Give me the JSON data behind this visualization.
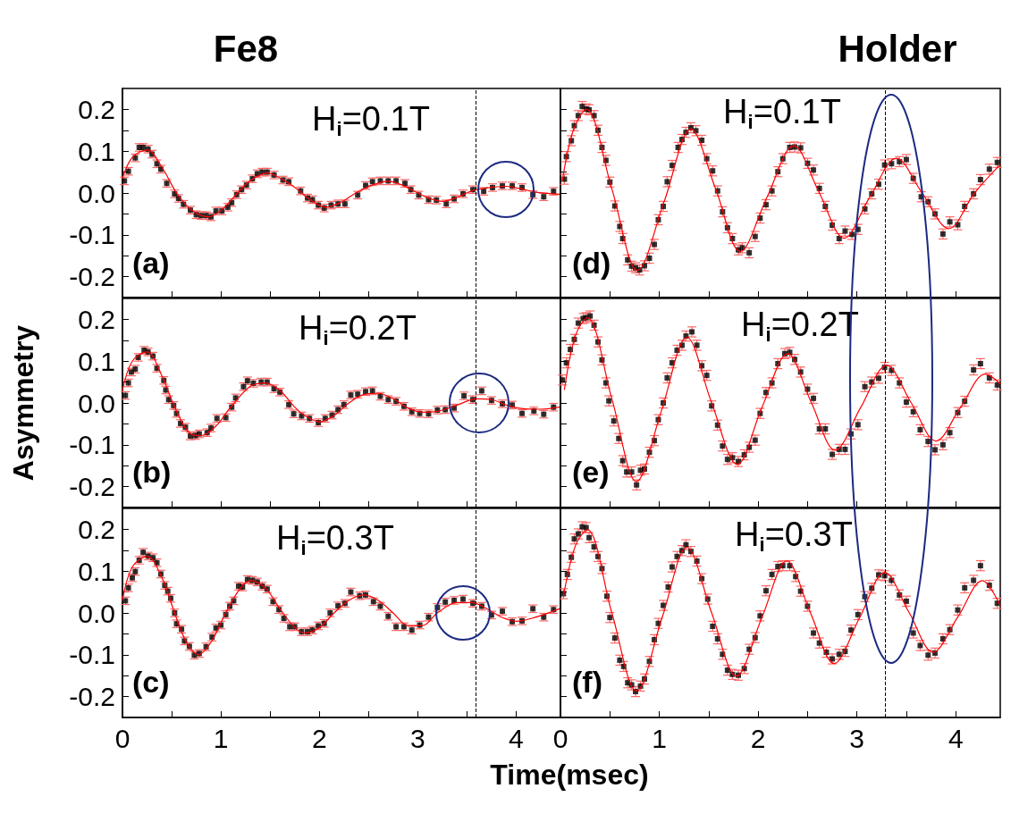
{
  "chart_data": [
    {
      "type": "scatter",
      "title": "Fe8",
      "annotations": [
        "H$_{i}$=0.1T",
        "(a)"
      ],
      "marker": "square",
      "tick_labels": "y",
      "line_style": "solid",
      "xlim": [
        0,
        4.45
      ],
      "xticks": [
        0,
        {
          "value": 0.5,
          "label": null
        },
        1,
        {
          "value": 1.5,
          "label": null
        },
        2,
        {
          "value": 2.5,
          "label": null
        },
        3,
        {
          "value": 3.5,
          "label": null
        },
        4
      ],
      "ylim": [
        -0.25,
        0.25
      ],
      "yticks": [
        -0.2,
        {
          "value": -0.15,
          "label": null
        },
        -0.1,
        {
          "value": -0.05,
          "label": null
        },
        {
          "value": 0,
          "label": "0.0"
        },
        {
          "value": 0.05,
          "label": null
        },
        0.1,
        {
          "value": 0.15,
          "label": null
        },
        0.2
      ],
      "ref_lines": [
        {
          "axis": "x",
          "value": 3.59,
          "color": "#000000",
          "line_style": "dashed"
        }
      ],
      "series": [
        {
          "color": "#000000",
          "x": [
            0.02,
            0.06,
            0.13,
            0.17,
            0.21,
            0.26,
            0.3,
            0.35,
            0.39,
            0.45,
            0.53,
            0.57,
            0.62,
            0.69,
            0.75,
            0.8,
            0.85,
            0.9,
            0.95,
            1.01,
            1.07,
            1.11,
            1.16,
            1.21,
            1.26,
            1.32,
            1.37,
            1.42,
            1.47,
            1.54,
            1.63,
            1.69,
            1.81,
            1.88,
            1.93,
            1.99,
            2.05,
            2.12,
            2.19,
            2.26,
            2.39,
            2.47,
            2.54,
            2.62,
            2.7,
            2.78,
            2.87,
            2.93,
            3.01,
            3.11,
            3.19,
            3.29,
            3.37,
            3.46,
            3.56,
            3.67,
            3.76,
            3.86,
            3.96,
            4.06,
            4.17,
            4.28,
            4.38
          ],
          "values": [
            0.029,
            0.052,
            0.084,
            0.109,
            0.109,
            0.105,
            0.093,
            0.07,
            0.057,
            0.023,
            -0.002,
            -0.013,
            -0.027,
            -0.041,
            -0.052,
            -0.054,
            -0.054,
            -0.057,
            -0.043,
            -0.043,
            -0.034,
            -0.023,
            -0.004,
            0.008,
            0.019,
            0.034,
            0.046,
            0.05,
            0.05,
            0.043,
            0.031,
            0.027,
            0.005,
            -0.012,
            -0.016,
            -0.029,
            -0.036,
            -0.029,
            -0.026,
            -0.026,
            -0.005,
            0.018,
            0.027,
            0.029,
            0.029,
            0.029,
            0.023,
            0.008,
            -0.005,
            -0.016,
            -0.017,
            -0.026,
            -0.014,
            -0.002,
            0.008,
            0.004,
            0.013,
            0.017,
            0.017,
            0.013,
            -0.004,
            -0.009,
            0.004
          ],
          "errors": [
            0.009,
            0.009,
            0.009,
            0.009,
            0.009,
            0.009,
            0.009,
            0.009,
            0.009,
            0.009,
            0.009,
            0.009,
            0.009,
            0.009,
            0.009,
            0.009,
            0.009,
            0.009,
            0.009,
            0.009,
            0.009,
            0.009,
            0.009,
            0.009,
            0.009,
            0.009,
            0.009,
            0.009,
            0.009,
            0.009,
            0.009,
            0.009,
            0.009,
            0.009,
            0.009,
            0.009,
            0.009,
            0.009,
            0.009,
            0.009,
            0.009,
            0.009,
            0.009,
            0.009,
            0.009,
            0.009,
            0.009,
            0.009,
            0.009,
            0.009,
            0.009,
            0.009,
            0.009,
            0.009,
            0.009,
            0.009,
            0.009,
            0.009,
            0.009,
            0.009,
            0.009,
            0.009,
            0.009
          ]
        },
        {
          "type": "line",
          "color": "#ff0000",
          "marker": "none",
          "x": [
            0,
            0.1,
            0.25,
            0.4,
            0.55,
            0.7,
            0.87,
            1.0,
            1.17,
            1.3,
            1.47,
            1.62,
            1.77,
            1.9,
            2.07,
            2.22,
            2.37,
            2.53,
            2.7,
            2.85,
            3.0,
            3.12,
            3.25,
            3.4,
            3.55,
            3.7,
            3.9,
            4.05,
            4.2,
            4.44
          ],
          "values": [
            0.035,
            0.085,
            0.103,
            0.062,
            0.0,
            -0.04,
            -0.057,
            -0.042,
            0.0,
            0.03,
            0.048,
            0.033,
            0.01,
            -0.015,
            -0.034,
            -0.022,
            0.0,
            0.018,
            0.028,
            0.018,
            0.0,
            -0.013,
            -0.02,
            -0.01,
            0.005,
            0.012,
            0.016,
            0.01,
            0.002,
            -0.003
          ]
        }
      ]
    },
    {
      "type": "scatter",
      "ylabel": "Asymmetry",
      "annotations": [
        "H$_{i}$=0.2T",
        "(b)"
      ],
      "marker": "square",
      "tick_labels": "y",
      "line_style": "solid",
      "xlim": [
        0,
        4.45
      ],
      "xticks": [
        0,
        {
          "value": 0.5,
          "label": null
        },
        1,
        {
          "value": 1.5,
          "label": null
        },
        2,
        {
          "value": 2.5,
          "label": null
        },
        3,
        {
          "value": 3.5,
          "label": null
        },
        4
      ],
      "ylim": [
        -0.25,
        0.25
      ],
      "yticks": [
        -0.2,
        {
          "value": -0.15,
          "label": null
        },
        -0.1,
        {
          "value": -0.05,
          "label": null
        },
        {
          "value": 0,
          "label": "0.0"
        },
        {
          "value": 0.05,
          "label": null
        },
        0.1,
        {
          "value": 0.15,
          "label": null
        },
        0.2
      ],
      "ref_lines": [
        {
          "axis": "x",
          "value": 3.59,
          "color": "#000000",
          "line_style": "dashed"
        }
      ],
      "series": [
        {
          "color": "#000000",
          "x": [
            0.03,
            0.06,
            0.09,
            0.13,
            0.16,
            0.22,
            0.26,
            0.31,
            0.35,
            0.42,
            0.44,
            0.47,
            0.52,
            0.55,
            0.59,
            0.64,
            0.69,
            0.74,
            0.78,
            0.86,
            0.9,
            0.96,
            1.05,
            1.11,
            1.15,
            1.23,
            1.27,
            1.33,
            1.41,
            1.47,
            1.54,
            1.6,
            1.69,
            1.74,
            1.82,
            1.9,
            1.99,
            2.06,
            2.13,
            2.19,
            2.25,
            2.32,
            2.39,
            2.47,
            2.54,
            2.62,
            2.7,
            2.78,
            2.86,
            2.94,
            3.02,
            3.11,
            3.2,
            3.28,
            3.37,
            3.47,
            3.56,
            3.65,
            3.75,
            3.86,
            3.96,
            4.06,
            4.18,
            4.28,
            4.38
          ],
          "values": [
            0.018,
            0.048,
            0.074,
            0.081,
            0.109,
            0.126,
            0.122,
            0.112,
            0.083,
            0.054,
            0.031,
            0.008,
            -0.006,
            -0.025,
            -0.049,
            -0.058,
            -0.079,
            -0.078,
            -0.074,
            -0.071,
            -0.06,
            -0.037,
            -0.035,
            -0.01,
            0.012,
            0.039,
            0.053,
            0.047,
            0.05,
            0.05,
            0.034,
            0.026,
            -0.004,
            -0.026,
            -0.031,
            -0.037,
            -0.047,
            -0.037,
            -0.029,
            -0.016,
            -0.004,
            0.019,
            0.021,
            0.027,
            0.029,
            0.016,
            0.008,
            0.004,
            -0.008,
            -0.021,
            -0.025,
            -0.026,
            -0.017,
            -0.016,
            -0.012,
            0.017,
            0.008,
            0.029,
            0.006,
            -0.002,
            -0.005,
            -0.025,
            -0.019,
            -0.027,
            -0.01
          ],
          "errors": [
            0.009,
            0.009,
            0.009,
            0.009,
            0.009,
            0.009,
            0.009,
            0.009,
            0.009,
            0.009,
            0.009,
            0.009,
            0.009,
            0.009,
            0.009,
            0.009,
            0.009,
            0.009,
            0.009,
            0.009,
            0.009,
            0.009,
            0.009,
            0.009,
            0.009,
            0.009,
            0.009,
            0.009,
            0.009,
            0.009,
            0.009,
            0.009,
            0.009,
            0.009,
            0.009,
            0.009,
            0.009,
            0.009,
            0.009,
            0.009,
            0.009,
            0.009,
            0.009,
            0.009,
            0.009,
            0.009,
            0.009,
            0.009,
            0.009,
            0.009,
            0.009,
            0.009,
            0.009,
            0.009,
            0.009,
            0.009,
            0.009,
            0.009,
            0.009,
            0.009,
            0.009,
            0.009,
            0.009,
            0.009,
            0.009
          ]
        },
        {
          "type": "line",
          "color": "#ff0000",
          "marker": "none",
          "x": [
            0,
            0.1,
            0.25,
            0.4,
            0.55,
            0.7,
            0.8,
            0.95,
            1.1,
            1.3,
            1.45,
            1.6,
            1.75,
            1.85,
            2.0,
            2.15,
            2.3,
            2.45,
            2.6,
            2.75,
            2.9,
            3.05,
            3.2,
            3.4,
            3.6,
            3.75,
            3.9,
            4.05,
            4.25,
            4.44
          ],
          "values": [
            0.03,
            0.1,
            0.122,
            0.065,
            -0.02,
            -0.075,
            -0.078,
            -0.055,
            -0.01,
            0.04,
            0.048,
            0.03,
            -0.01,
            -0.03,
            -0.045,
            -0.03,
            0.0,
            0.02,
            0.023,
            0.01,
            -0.012,
            -0.022,
            -0.02,
            -0.005,
            0.01,
            0.008,
            -0.005,
            -0.013,
            -0.015,
            -0.01
          ]
        }
      ]
    },
    {
      "type": "scatter",
      "xlabel": "Time(msec)",
      "annotations": [
        "H$_{i}$=0.3T",
        "(c)"
      ],
      "marker": "square",
      "line_style": "solid",
      "xlim": [
        0,
        4.45
      ],
      "xticks": [
        0,
        {
          "value": 0.5,
          "label": null
        },
        1,
        {
          "value": 1.5,
          "label": null
        },
        2,
        {
          "value": 2.5,
          "label": null
        },
        3,
        {
          "value": 3.5,
          "label": null
        },
        4
      ],
      "ylim": [
        -0.25,
        0.25
      ],
      "yticks": [
        -0.2,
        {
          "value": -0.15,
          "label": null
        },
        -0.1,
        {
          "value": -0.05,
          "label": null
        },
        {
          "value": 0,
          "label": "0.0"
        },
        {
          "value": 0.05,
          "label": null
        },
        0.1,
        {
          "value": 0.15,
          "label": null
        },
        0.2
      ],
      "ref_lines": [
        {
          "axis": "x",
          "value": 3.59,
          "color": "#000000",
          "line_style": "dashed"
        }
      ],
      "series": [
        {
          "color": "#000000",
          "x": [
            0.03,
            0.06,
            0.1,
            0.13,
            0.17,
            0.21,
            0.26,
            0.31,
            0.35,
            0.39,
            0.43,
            0.46,
            0.49,
            0.53,
            0.55,
            0.6,
            0.63,
            0.68,
            0.73,
            0.78,
            0.85,
            0.91,
            0.95,
            1.0,
            1.05,
            1.09,
            1.13,
            1.18,
            1.22,
            1.27,
            1.32,
            1.37,
            1.42,
            1.47,
            1.53,
            1.59,
            1.64,
            1.7,
            1.75,
            1.82,
            1.88,
            1.93,
            1.99,
            2.05,
            2.11,
            2.19,
            2.26,
            2.32,
            2.41,
            2.47,
            2.55,
            2.62,
            2.7,
            2.78,
            2.86,
            2.94,
            3.02,
            3.11,
            3.2,
            3.28,
            3.37,
            3.46,
            3.56,
            3.65,
            3.75,
            3.86,
            3.96,
            4.06,
            4.17,
            4.28,
            4.38
          ],
          "values": [
            0.029,
            0.06,
            0.084,
            0.099,
            0.126,
            0.145,
            0.136,
            0.132,
            0.12,
            0.093,
            0.066,
            0.052,
            0.035,
            0.0,
            -0.026,
            -0.039,
            -0.067,
            -0.08,
            -0.101,
            -0.097,
            -0.081,
            -0.058,
            -0.036,
            -0.029,
            -0.004,
            0.016,
            0.029,
            0.064,
            0.062,
            0.08,
            0.078,
            0.074,
            0.064,
            0.057,
            0.027,
            0.008,
            -0.013,
            -0.033,
            -0.033,
            -0.045,
            -0.045,
            -0.041,
            -0.031,
            -0.025,
            0.0,
            0.017,
            0.023,
            0.05,
            0.041,
            0.043,
            0.027,
            0.016,
            -0.008,
            -0.033,
            -0.033,
            -0.041,
            -0.029,
            -0.01,
            0.013,
            0.026,
            0.03,
            0.033,
            0.023,
            0.016,
            -0.005,
            0.004,
            -0.021,
            -0.019,
            0.01,
            -0.01,
            0.008
          ],
          "errors": [
            0.009,
            0.009,
            0.009,
            0.009,
            0.009,
            0.009,
            0.009,
            0.009,
            0.009,
            0.009,
            0.009,
            0.009,
            0.009,
            0.009,
            0.009,
            0.009,
            0.009,
            0.009,
            0.009,
            0.009,
            0.009,
            0.009,
            0.009,
            0.009,
            0.009,
            0.009,
            0.009,
            0.009,
            0.009,
            0.009,
            0.009,
            0.009,
            0.009,
            0.009,
            0.009,
            0.009,
            0.009,
            0.009,
            0.009,
            0.009,
            0.009,
            0.009,
            0.009,
            0.009,
            0.009,
            0.009,
            0.009,
            0.009,
            0.009,
            0.009,
            0.009,
            0.009,
            0.009,
            0.009,
            0.009,
            0.009,
            0.009,
            0.009,
            0.009,
            0.009,
            0.009,
            0.009,
            0.009,
            0.009,
            0.009,
            0.009,
            0.009,
            0.009,
            0.009,
            0.009,
            0.009
          ]
        },
        {
          "type": "line",
          "color": "#ff0000",
          "marker": "none",
          "x": [
            0,
            0.1,
            0.25,
            0.4,
            0.53,
            0.65,
            0.77,
            0.9,
            1.05,
            1.2,
            1.3,
            1.45,
            1.6,
            1.75,
            1.85,
            2.0,
            2.15,
            2.3,
            2.45,
            2.6,
            2.75,
            2.9,
            3.05,
            3.2,
            3.4,
            3.55,
            3.7,
            3.85,
            4.0,
            4.2,
            4.44
          ],
          "values": [
            0.03,
            0.11,
            0.135,
            0.085,
            0.0,
            -0.07,
            -0.1,
            -0.07,
            0.0,
            0.06,
            0.077,
            0.06,
            0.01,
            -0.035,
            -0.048,
            -0.035,
            0.0,
            0.03,
            0.043,
            0.03,
            0.0,
            -0.03,
            -0.03,
            0.0,
            0.025,
            0.025,
            0.01,
            -0.01,
            -0.02,
            -0.01,
            0.01
          ]
        }
      ]
    },
    {
      "type": "scatter",
      "title": "Holder",
      "annotations": [
        "H$_{i}$=0.1T",
        "(d)"
      ],
      "marker": "square",
      "tick_labels": false,
      "line_style": "solid",
      "xlim": [
        0,
        4.45
      ],
      "xticks": [
        0,
        0.5,
        1,
        1.5,
        2,
        2.5,
        3,
        3.5,
        4
      ],
      "ylim": [
        -0.25,
        0.25
      ],
      "yticks": [
        -0.2,
        -0.15,
        -0.1,
        -0.05,
        0,
        0.05,
        0.1,
        0.15,
        0.2
      ],
      "ref_lines": [
        {
          "axis": "x",
          "value": 3.29,
          "color": "#000000",
          "line_style": "dashed"
        }
      ],
      "series": [
        {
          "color": "#000000",
          "x": [
            0.04,
            0.06,
            0.11,
            0.14,
            0.18,
            0.22,
            0.26,
            0.29,
            0.34,
            0.38,
            0.42,
            0.46,
            0.5,
            0.55,
            0.6,
            0.63,
            0.68,
            0.72,
            0.76,
            0.8,
            0.85,
            0.9,
            0.95,
            0.99,
            1.04,
            1.08,
            1.13,
            1.19,
            1.23,
            1.27,
            1.32,
            1.37,
            1.43,
            1.48,
            1.54,
            1.59,
            1.64,
            1.69,
            1.74,
            1.8,
            1.84,
            1.91,
            1.97,
            2.02,
            2.08,
            2.14,
            2.2,
            2.25,
            2.32,
            2.37,
            2.43,
            2.5,
            2.56,
            2.62,
            2.68,
            2.75,
            2.82,
            2.88,
            2.95,
            3.01,
            3.08,
            3.15,
            3.22,
            3.28,
            3.35,
            3.43,
            3.5,
            3.57,
            3.65,
            3.72,
            3.79,
            3.87,
            3.94,
            4.02,
            4.09,
            4.18,
            4.25,
            4.34,
            4.42
          ],
          "values": [
            0.033,
            0.087,
            0.125,
            0.161,
            0.185,
            0.207,
            0.201,
            0.199,
            0.185,
            0.15,
            0.109,
            0.078,
            0.026,
            -0.031,
            -0.08,
            -0.109,
            -0.16,
            -0.175,
            -0.179,
            -0.184,
            -0.174,
            -0.156,
            -0.123,
            -0.064,
            -0.032,
            0.027,
            0.066,
            0.109,
            0.128,
            0.145,
            0.156,
            0.149,
            0.126,
            0.082,
            0.053,
            0.005,
            -0.045,
            -0.083,
            -0.109,
            -0.136,
            -0.131,
            -0.143,
            -0.104,
            -0.06,
            -0.028,
            0.005,
            0.051,
            0.082,
            0.109,
            0.11,
            0.108,
            0.071,
            0.055,
            0.011,
            -0.032,
            -0.077,
            -0.109,
            -0.091,
            -0.099,
            -0.087,
            -0.038,
            -0.002,
            0.021,
            0.067,
            0.07,
            0.075,
            0.08,
            0.035,
            -0.009,
            -0.021,
            -0.05,
            -0.098,
            -0.069,
            -0.076,
            -0.032,
            -0.002,
            0.032,
            0.057,
            0.073
          ],
          "errors": [
            0.012,
            0.012,
            0.012,
            0.012,
            0.012,
            0.012,
            0.012,
            0.012,
            0.012,
            0.012,
            0.012,
            0.012,
            0.012,
            0.012,
            0.012,
            0.012,
            0.012,
            0.012,
            0.012,
            0.012,
            0.012,
            0.012,
            0.012,
            0.012,
            0.012,
            0.012,
            0.012,
            0.012,
            0.012,
            0.012,
            0.012,
            0.012,
            0.012,
            0.012,
            0.012,
            0.012,
            0.012,
            0.012,
            0.012,
            0.012,
            0.012,
            0.012,
            0.012,
            0.012,
            0.012,
            0.012,
            0.012,
            0.012,
            0.012,
            0.012,
            0.012,
            0.012,
            0.012,
            0.012,
            0.012,
            0.012,
            0.012,
            0.012,
            0.012,
            0.012,
            0.012,
            0.012,
            0.012,
            0.012,
            0.012,
            0.012,
            0.012,
            0.012,
            0.012,
            0.012,
            0.012,
            0.012,
            0.012,
            0.012,
            0.012,
            0.012,
            0.012,
            0.012,
            0.012
          ]
        },
        {
          "type": "line",
          "color": "#ff0000",
          "marker": "none",
          "x": [
            0.02,
            0.13,
            0.26,
            0.52,
            0.78,
            1.05,
            1.32,
            1.57,
            1.82,
            2.09,
            2.36,
            2.62,
            2.87,
            3.13,
            3.4,
            3.66,
            3.93,
            4.19,
            4.45
          ],
          "values": [
            0.03,
            0.15,
            0.2,
            0.01,
            -0.185,
            -0.02,
            0.153,
            0.01,
            -0.14,
            -0.01,
            0.113,
            0.0,
            -0.108,
            -0.01,
            0.083,
            0.0,
            -0.085,
            0.0,
            0.068
          ]
        }
      ]
    },
    {
      "type": "scatter",
      "annotations": [
        "H$_{i}$=0.2T",
        "(e)"
      ],
      "marker": "square",
      "tick_labels": false,
      "line_style": "solid",
      "xlim": [
        0,
        4.45
      ],
      "xticks": [
        0,
        0.5,
        1,
        1.5,
        2,
        2.5,
        3,
        3.5,
        4
      ],
      "ylim": [
        -0.25,
        0.25
      ],
      "yticks": [
        -0.2,
        -0.15,
        -0.1,
        -0.05,
        0,
        0.05,
        0.1,
        0.15,
        0.2
      ],
      "ref_lines": [
        {
          "axis": "x",
          "value": 3.29,
          "color": "#000000",
          "line_style": "dashed"
        }
      ],
      "series": [
        {
          "color": "#000000",
          "x": [
            0.02,
            0.06,
            0.1,
            0.14,
            0.18,
            0.23,
            0.26,
            0.3,
            0.34,
            0.38,
            0.42,
            0.46,
            0.49,
            0.54,
            0.59,
            0.63,
            0.67,
            0.72,
            0.77,
            0.81,
            0.85,
            0.9,
            0.95,
            0.99,
            1.04,
            1.08,
            1.13,
            1.18,
            1.23,
            1.27,
            1.33,
            1.38,
            1.43,
            1.48,
            1.53,
            1.59,
            1.64,
            1.69,
            1.74,
            1.8,
            1.86,
            1.91,
            1.97,
            2.02,
            2.08,
            2.14,
            2.2,
            2.27,
            2.32,
            2.37,
            2.43,
            2.5,
            2.56,
            2.62,
            2.68,
            2.75,
            2.82,
            2.88,
            2.94,
            3.01,
            3.08,
            3.15,
            3.22,
            3.28,
            3.35,
            3.43,
            3.5,
            3.57,
            3.64,
            3.72,
            3.79,
            3.87,
            3.94,
            4.02,
            4.09,
            4.18,
            4.25,
            4.34,
            4.42
          ],
          "values": [
            0.055,
            0.096,
            0.128,
            0.152,
            0.191,
            0.202,
            0.204,
            0.208,
            0.186,
            0.146,
            0.103,
            0.048,
            0.005,
            -0.043,
            -0.085,
            -0.138,
            -0.165,
            -0.165,
            -0.196,
            -0.161,
            -0.158,
            -0.118,
            -0.09,
            -0.04,
            0.0,
            0.06,
            0.096,
            0.126,
            0.138,
            0.16,
            0.17,
            0.138,
            0.089,
            0.066,
            -0.007,
            -0.053,
            -0.103,
            -0.135,
            -0.131,
            -0.14,
            -0.124,
            -0.106,
            -0.089,
            -0.025,
            0.025,
            0.048,
            0.094,
            0.118,
            0.121,
            0.104,
            0.074,
            0.033,
            0.011,
            -0.062,
            -0.062,
            -0.123,
            -0.111,
            -0.111,
            -0.074,
            -0.052,
            0.039,
            0.05,
            0.059,
            0.085,
            0.078,
            0.048,
            0.002,
            -0.021,
            -0.064,
            -0.092,
            -0.112,
            -0.1,
            -0.071,
            -0.023,
            0.004,
            0.079,
            0.094,
            0.06,
            0.043
          ],
          "errors": [
            0.012,
            0.012,
            0.012,
            0.012,
            0.012,
            0.012,
            0.012,
            0.012,
            0.012,
            0.012,
            0.012,
            0.012,
            0.012,
            0.012,
            0.012,
            0.012,
            0.012,
            0.012,
            0.012,
            0.012,
            0.012,
            0.012,
            0.012,
            0.012,
            0.012,
            0.012,
            0.012,
            0.012,
            0.012,
            0.012,
            0.012,
            0.012,
            0.012,
            0.012,
            0.012,
            0.012,
            0.012,
            0.012,
            0.012,
            0.012,
            0.012,
            0.012,
            0.012,
            0.012,
            0.012,
            0.012,
            0.012,
            0.012,
            0.012,
            0.012,
            0.012,
            0.012,
            0.012,
            0.012,
            0.012,
            0.012,
            0.012,
            0.012,
            0.012,
            0.012,
            0.012,
            0.012,
            0.012,
            0.012,
            0.012,
            0.012,
            0.012,
            0.012,
            0.012,
            0.012,
            0.012,
            0.012,
            0.012,
            0.012,
            0.012,
            0.012,
            0.012,
            0.012,
            0.012
          ]
        },
        {
          "type": "line",
          "color": "#ff0000",
          "marker": "none",
          "x": [
            0.04,
            0.15,
            0.27,
            0.52,
            0.77,
            1.02,
            1.28,
            1.53,
            1.79,
            2.04,
            2.3,
            2.54,
            2.78,
            3.04,
            3.3,
            3.55,
            3.8,
            4.05,
            4.3,
            4.45
          ],
          "values": [
            0.032,
            0.16,
            0.204,
            0.01,
            -0.188,
            -0.02,
            0.157,
            0.0,
            -0.147,
            -0.01,
            0.118,
            0.0,
            -0.113,
            -0.01,
            0.09,
            0.0,
            -0.091,
            -0.01,
            0.069,
            0.046
          ]
        }
      ]
    },
    {
      "type": "scatter",
      "annotations": [
        "H$_{i}$=0.3T",
        "(f)"
      ],
      "marker": "square",
      "tick_labels": "x",
      "line_style": "solid",
      "xlim": [
        0,
        4.45
      ],
      "xticks": [
        0,
        {
          "value": 0.5,
          "label": null
        },
        1,
        {
          "value": 1.5,
          "label": null
        },
        2,
        {
          "value": 2.5,
          "label": null
        },
        3,
        {
          "value": 3.5,
          "label": null
        },
        4
      ],
      "ylim": [
        -0.25,
        0.25
      ],
      "yticks": [
        -0.2,
        -0.15,
        -0.1,
        -0.05,
        0,
        0.05,
        0.1,
        0.15,
        0.2
      ],
      "ref_lines": [
        {
          "axis": "x",
          "value": 3.29,
          "color": "#000000",
          "line_style": "dashed"
        }
      ],
      "series": [
        {
          "color": "#000000",
          "x": [
            0.03,
            0.07,
            0.11,
            0.14,
            0.18,
            0.22,
            0.26,
            0.29,
            0.34,
            0.38,
            0.42,
            0.47,
            0.5,
            0.55,
            0.6,
            0.64,
            0.68,
            0.72,
            0.76,
            0.81,
            0.85,
            0.9,
            0.95,
            0.99,
            1.04,
            1.09,
            1.13,
            1.18,
            1.23,
            1.27,
            1.32,
            1.38,
            1.43,
            1.49,
            1.54,
            1.59,
            1.64,
            1.69,
            1.74,
            1.8,
            1.86,
            1.91,
            1.97,
            2.02,
            2.08,
            2.14,
            2.2,
            2.25,
            2.32,
            2.38,
            2.43,
            2.5,
            2.56,
            2.62,
            2.69,
            2.75,
            2.82,
            2.88,
            2.94,
            3.01,
            3.08,
            3.15,
            3.22,
            3.28,
            3.35,
            3.43,
            3.5,
            3.57,
            3.64,
            3.72,
            3.79,
            3.87,
            3.94,
            4.02,
            4.09,
            4.18,
            4.25,
            4.34,
            4.42
          ],
          "values": [
            0.046,
            0.092,
            0.133,
            0.177,
            0.189,
            0.206,
            0.204,
            0.18,
            0.158,
            0.135,
            0.106,
            0.04,
            -0.011,
            -0.06,
            -0.113,
            -0.128,
            -0.167,
            -0.172,
            -0.188,
            -0.175,
            -0.158,
            -0.116,
            -0.064,
            -0.025,
            0.018,
            0.062,
            0.11,
            0.135,
            0.149,
            0.163,
            0.147,
            0.124,
            0.082,
            0.033,
            -0.032,
            -0.062,
            -0.099,
            -0.137,
            -0.147,
            -0.149,
            -0.133,
            -0.087,
            -0.059,
            -0.007,
            0.053,
            0.092,
            0.111,
            0.113,
            0.113,
            0.087,
            0.052,
            0.016,
            -0.048,
            -0.072,
            -0.094,
            -0.11,
            -0.099,
            -0.092,
            -0.041,
            -0.004,
            0.039,
            0.059,
            0.091,
            0.089,
            0.078,
            0.043,
            0.028,
            -0.048,
            -0.078,
            -0.101,
            -0.096,
            -0.062,
            -0.04,
            0.007,
            0.06,
            0.078,
            0.113,
            0.066,
            0.023
          ],
          "errors": [
            0.012,
            0.012,
            0.012,
            0.012,
            0.012,
            0.012,
            0.012,
            0.012,
            0.012,
            0.012,
            0.012,
            0.012,
            0.012,
            0.012,
            0.012,
            0.012,
            0.012,
            0.012,
            0.012,
            0.012,
            0.012,
            0.012,
            0.012,
            0.012,
            0.012,
            0.012,
            0.012,
            0.012,
            0.012,
            0.012,
            0.012,
            0.012,
            0.012,
            0.012,
            0.012,
            0.012,
            0.012,
            0.012,
            0.012,
            0.012,
            0.012,
            0.012,
            0.012,
            0.012,
            0.012,
            0.012,
            0.012,
            0.012,
            0.012,
            0.012,
            0.012,
            0.012,
            0.012,
            0.012,
            0.012,
            0.012,
            0.012,
            0.012,
            0.012,
            0.012,
            0.012,
            0.012,
            0.012,
            0.012,
            0.012,
            0.012,
            0.012,
            0.012,
            0.012,
            0.012,
            0.012,
            0.012,
            0.012,
            0.012,
            0.012,
            0.012,
            0.012,
            0.012,
            0.012
          ]
        },
        {
          "type": "line",
          "color": "#ff0000",
          "marker": "none",
          "x": [
            0.03,
            0.15,
            0.27,
            0.52,
            0.77,
            1.03,
            1.28,
            1.53,
            1.78,
            2.04,
            2.29,
            2.53,
            2.77,
            3.03,
            3.28,
            3.53,
            3.77,
            4.02,
            4.27,
            4.45
          ],
          "values": [
            0.039,
            0.16,
            0.199,
            0.0,
            -0.187,
            -0.01,
            0.157,
            0.0,
            -0.151,
            -0.01,
            0.124,
            0.0,
            -0.121,
            -0.01,
            0.097,
            0.0,
            -0.094,
            -0.01,
            0.077,
            0.018
          ]
        }
      ]
    }
  ]
}
